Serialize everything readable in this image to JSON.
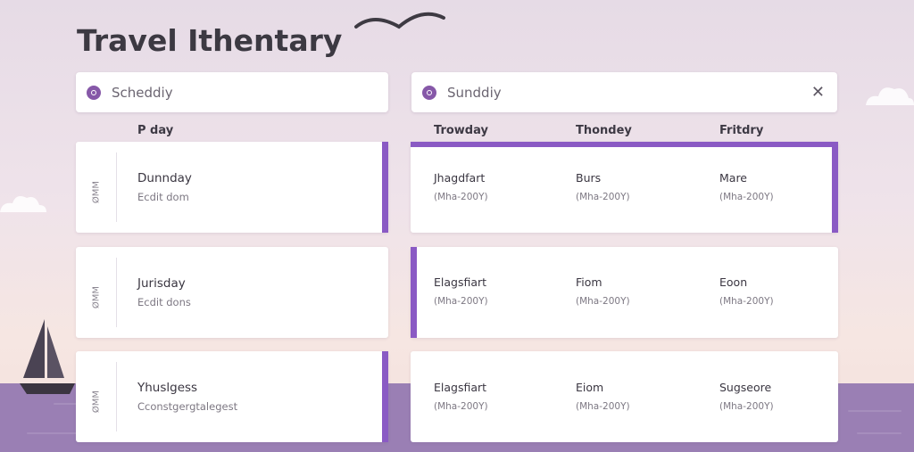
{
  "app": {
    "title": "Travel Ithentary"
  },
  "search_left": {
    "value": "Scheddiy"
  },
  "search_right": {
    "value": "Sunddiy"
  },
  "column_headers": {
    "left": "P day",
    "c1": "Trowday",
    "c2": "Thondey",
    "c3": "Fritdry"
  },
  "rows": [
    {
      "left": {
        "rot": "ØMM",
        "title": "Dunnday",
        "sub": "Ecdit dom"
      },
      "cells": [
        {
          "title": "Jhagdfart",
          "sub": "(Mha-200Y)"
        },
        {
          "title": "Burs",
          "sub": "(Mha-200Y)"
        },
        {
          "title": "Mare",
          "sub": "(Mha-200Y)"
        }
      ]
    },
    {
      "left": {
        "rot": "ØMM",
        "title": "Jurisday",
        "sub": "Ecdit dons"
      },
      "cells": [
        {
          "title": "Elagsfiart",
          "sub": "(Mha-200Y)"
        },
        {
          "title": "Fiom",
          "sub": "(Mha-200Y)"
        },
        {
          "title": "Eoon",
          "sub": "(Mha-200Y)"
        }
      ]
    },
    {
      "left": {
        "rot": "ØMM",
        "title": "Yhuslgess",
        "sub": "Cconstgergtalegest"
      },
      "cells": [
        {
          "title": "Elagsfiart",
          "sub": "(Mha-200Y)"
        },
        {
          "title": "Eiom",
          "sub": "(Mha-200Y)"
        },
        {
          "title": "Sugseore",
          "sub": "(Mha-200Y)"
        }
      ]
    }
  ],
  "colors": {
    "accent": "#8a5ac4",
    "title": "#3c3942",
    "sea": "#9a7fb4"
  },
  "icons": {
    "search_left": "compass-icon",
    "search_right": "compass-icon",
    "close": "close-icon"
  }
}
